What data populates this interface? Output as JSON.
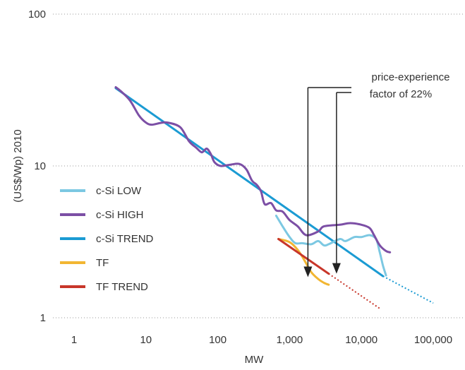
{
  "chart_data": {
    "type": "line",
    "xlabel": "MW",
    "ylabel": "(US$/Wp) 2010",
    "x_scale": "log",
    "y_scale": "log",
    "xlim": [
      1,
      100000
    ],
    "ylim": [
      1,
      100
    ],
    "x_ticks": [
      {
        "value": 1,
        "label": "1"
      },
      {
        "value": 10,
        "label": "10"
      },
      {
        "value": 100,
        "label": "100"
      },
      {
        "value": 1000,
        "label": "1,000"
      },
      {
        "value": 10000,
        "label": "10,000"
      },
      {
        "value": 100000,
        "label": "100,000"
      }
    ],
    "y_ticks": [
      {
        "value": 1,
        "label": "1"
      },
      {
        "value": 10,
        "label": "10"
      },
      {
        "value": 100,
        "label": "100"
      }
    ],
    "grid": "horizontal dotted",
    "legend_position": "left-middle",
    "series": [
      {
        "name": "c-Si LOW",
        "color": "#7cc8e2",
        "points": [
          [
            650,
            4.7
          ],
          [
            800,
            4.0
          ],
          [
            1000,
            3.4
          ],
          [
            1200,
            3.1
          ],
          [
            1500,
            3.1
          ],
          [
            2000,
            3.05
          ],
          [
            2500,
            3.2
          ],
          [
            3000,
            3.0
          ],
          [
            3500,
            3.05
          ],
          [
            5000,
            3.3
          ],
          [
            6000,
            3.2
          ],
          [
            8000,
            3.4
          ],
          [
            10000,
            3.4
          ],
          [
            13000,
            3.5
          ],
          [
            16000,
            3.3
          ],
          [
            18000,
            2.7
          ],
          [
            20000,
            2.2
          ],
          [
            22000,
            1.9
          ]
        ]
      },
      {
        "name": "c-Si HIGH",
        "color": "#7c4fa5",
        "points": [
          [
            3.8,
            33
          ],
          [
            4.5,
            31
          ],
          [
            6,
            27
          ],
          [
            8,
            21.5
          ],
          [
            10,
            19.3
          ],
          [
            12,
            18.7
          ],
          [
            16,
            19.2
          ],
          [
            20,
            19.3
          ],
          [
            30,
            18
          ],
          [
            40,
            14.5
          ],
          [
            50,
            13.2
          ],
          [
            60,
            12.3
          ],
          [
            70,
            13
          ],
          [
            80,
            12
          ],
          [
            90,
            10.6
          ],
          [
            110,
            10
          ],
          [
            150,
            10.2
          ],
          [
            200,
            10.3
          ],
          [
            250,
            9.5
          ],
          [
            300,
            8
          ],
          [
            350,
            7.5
          ],
          [
            400,
            6.8
          ],
          [
            450,
            5.6
          ],
          [
            550,
            5.7
          ],
          [
            650,
            5.1
          ],
          [
            800,
            5.0
          ],
          [
            1000,
            4.4
          ],
          [
            1300,
            4.0
          ],
          [
            1700,
            3.5
          ],
          [
            2500,
            3.7
          ],
          [
            3000,
            4.0
          ],
          [
            5000,
            4.1
          ],
          [
            7000,
            4.2
          ],
          [
            10000,
            4.1
          ],
          [
            13000,
            3.9
          ],
          [
            15000,
            3.5
          ],
          [
            18000,
            3.0
          ],
          [
            22000,
            2.75
          ],
          [
            25000,
            2.7
          ]
        ]
      },
      {
        "name": "c-Si TREND",
        "color": "#1b9bd3",
        "solid": [
          [
            3.8,
            32.5
          ],
          [
            20000,
            1.88
          ]
        ],
        "dotted": [
          [
            20000,
            1.88
          ],
          [
            100000,
            1.25
          ]
        ]
      },
      {
        "name": "TF",
        "color": "#f2b632",
        "points": [
          [
            700,
            3.3
          ],
          [
            1000,
            3.15
          ],
          [
            1300,
            2.8
          ],
          [
            1600,
            2.4
          ],
          [
            2000,
            2.0
          ],
          [
            2500,
            1.8
          ],
          [
            3000,
            1.7
          ],
          [
            3500,
            1.65
          ]
        ]
      },
      {
        "name": "TF TREND",
        "color": "#c8362a",
        "solid": [
          [
            700,
            3.3
          ],
          [
            3500,
            1.95
          ]
        ],
        "dotted": [
          [
            3500,
            1.95
          ],
          [
            18000,
            1.15
          ]
        ]
      }
    ],
    "annotations": [
      {
        "text": "price-experience",
        "text2": "factor of 22%",
        "arrows": [
          [
            1800,
            1.85
          ],
          [
            4500,
            1.95
          ]
        ]
      }
    ]
  }
}
